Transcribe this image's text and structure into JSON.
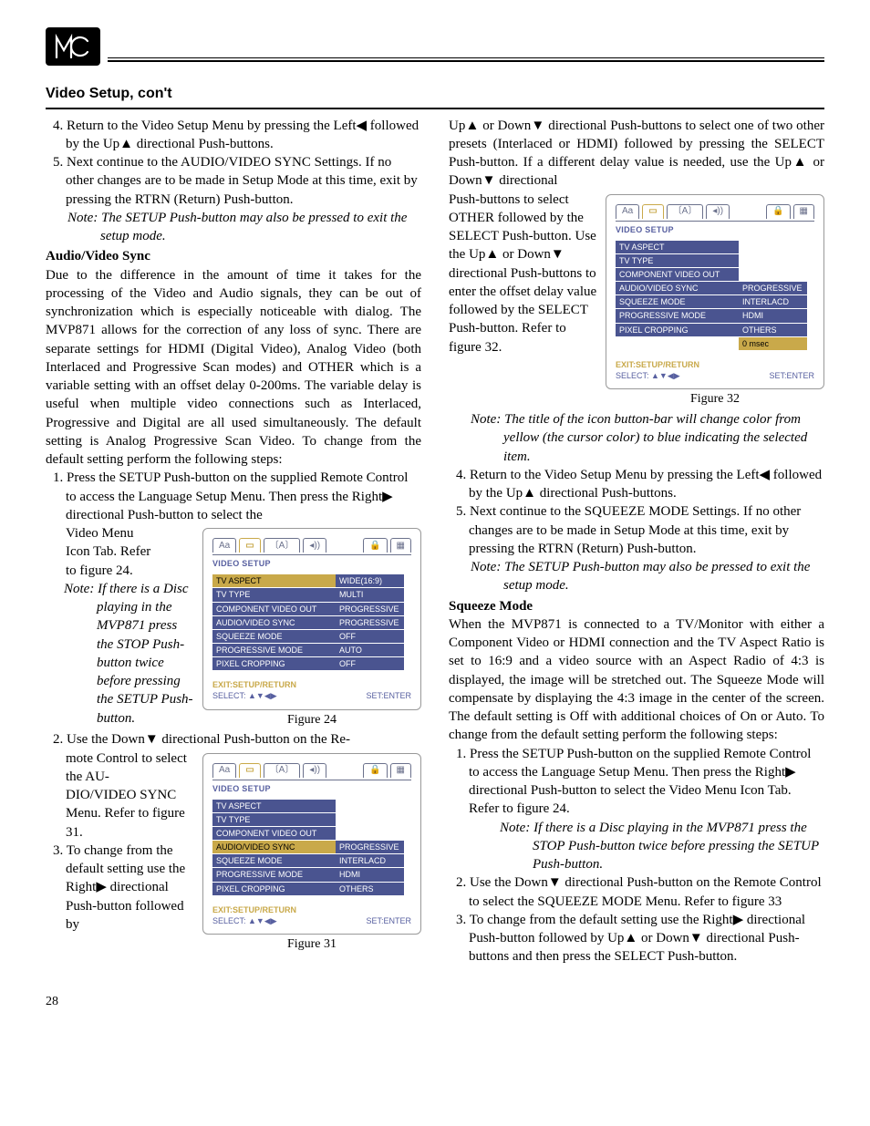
{
  "page": {
    "section_title": "Video Setup, con't",
    "number": "28"
  },
  "logo_text": "MC",
  "left_col": {
    "s4": "4. Return to the Video Setup Menu by pressing the Left◀ followed by the Up▲ directional Push-buttons.",
    "s5": "5. Next continue to the AUDIO/VIDEO SYNC Settings. If no other changes are to be made in Setup Mode at this time, exit by pressing the RTRN (Return) Push-button.",
    "s5_note": "Note: The SETUP Push-button may also be pressed to exit the setup mode.",
    "av_head": "Audio/Video Sync",
    "av_body": "Due to the difference in the amount of time it takes for the processing of the Video and Audio signals, they can be out of synchronization which is especially noticeable with dialog. The MVP871 allows for the correction of any loss of sync. There are separate settings for HDMI (Digital Video), Analog Video (both Interlaced and Progressive Scan modes) and OTHER which is a variable setting with an offset delay 0-200ms. The variable delay is useful when multiple video connections such as Interlaced, Progressive and Digital are all used simultaneously. The default setting is Analog Progressive Scan Video. To change from the default setting perform the following steps:",
    "s1a": "1. Press the SETUP Push-button on the supplied Remote Control to access the Language Setup Menu. Then press the Right▶ directional Push-button to select the Video Menu Icon Tab. Refer to figure 24.",
    "s1a_wrapped_1": "Video Menu",
    "s1a_wrapped_2": "Icon Tab. Refer",
    "s1a_wrapped_3": "to figure 24.",
    "s1a_note": "Note: If there is a Disc playing in the MVP871 press the STOP Push-button twice before pressing the SETUP Push-button.",
    "s2a": "2. Use the Down▼ directional Push-button on the Remote Control to select the AUDIO/VIDEO SYNC Menu. Refer to figure 31.",
    "s2a_wrapped": "mote Control to select the AU-DIO/VIDEO SYNC Menu. Refer to figure 31.",
    "s3a": "3. To change from the default setting use the Right▶ directional Push-button followed by"
  },
  "right_col": {
    "p1": "Up▲ or Down▼ directional Push-buttons to select one of two other presets (Interlaced or HDMI) followed by pressing the SELECT Push-button. If a different delay value is needed, use the Up▲ or Down▼ directional Push-buttons to select OTHER followed by the SELECT Push-button. Use the Up▲ or Down▼ directional Push-buttons to enter the offset delay value followed by the SELECT Push-button. Refer to figure 32.",
    "p1_wrapped": "Push-buttons to select OTHER followed by the SELECT Push-button. Use the Up▲ or Down▼ directional Push-buttons to enter the offset delay value followed by the SELECT Push-button. Refer to figure 32.",
    "p1_note": "Note: The title of the icon button-bar will change color from yellow (the cursor color) to blue indicating the selected item.",
    "s4b": "4. Return to the Video Setup Menu by pressing the Left◀ followed by the Up▲ directional Push-buttons.",
    "s5b": "5. Next continue to the SQUEEZE MODE Settings. If no other changes are to be made in Setup Mode at this time, exit by pressing the RTRN (Return) Push-button.",
    "s5b_note": "Note: The SETUP Push-button may also be pressed to exit the setup mode.",
    "sq_head": "Squeeze Mode",
    "sq_body": "When the MVP871 is connected to a TV/Monitor with either a Component Video or HDMI connection and the TV Aspect Ratio is set to 16:9 and a video source with an Aspect Radio of 4:3 is displayed, the image will be stretched out. The Squeeze Mode will compensate by displaying the 4:3 image in the center of the screen. The default setting is Off with additional choices of On or Auto. To change from the default setting perform the following steps:",
    "s1c": "1. Press the SETUP Push-button on the supplied Remote Control to access the Language Setup Menu. Then press the Right▶ directional Push-button to select the Video Menu Icon Tab. Refer to figure 24.",
    "s1c_note": "Note: If there is a Disc playing in the MVP871 press the STOP Push-button twice before pressing the SETUP Push-button.",
    "s2c": "2. Use the Down▼ directional Push-button on the Remote Control to select the SQUEEZE MODE Menu. Refer to figure 33",
    "s3c": "3. To change from the default setting use the Right▶ directional Push-button followed by Up▲ or Down▼ directional Push-buttons and then press the SELECT Push-button."
  },
  "osd_common": {
    "title": "VIDEO SETUP",
    "exit": "EXIT:SETUP/RETURN",
    "select": "SELECT: ▲▼◀▶",
    "set": "SET:ENTER",
    "tabs": [
      "Aa",
      "⬭",
      "〔A〕",
      "◀))",
      "",
      "🔒",
      "▦"
    ]
  },
  "fig24": {
    "caption": "Figure 24",
    "rows": [
      {
        "l": "TV ASPECT",
        "r": "WIDE(16:9)",
        "lc": "c-yellow",
        "rc": "c-blue"
      },
      {
        "l": "TV TYPE",
        "r": "MULTI",
        "lc": "c-blue",
        "rc": "c-blue"
      },
      {
        "l": "COMPONENT VIDEO OUT",
        "r": "PROGRESSIVE",
        "lc": "c-blue",
        "rc": "c-blue"
      },
      {
        "l": "AUDIO/VIDEO SYNC",
        "r": "PROGRESSIVE",
        "lc": "c-blue",
        "rc": "c-blue"
      },
      {
        "l": "SQUEEZE MODE",
        "r": "OFF",
        "lc": "c-blue",
        "rc": "c-blue"
      },
      {
        "l": "PROGRESSIVE MODE",
        "r": "AUTO",
        "lc": "c-blue",
        "rc": "c-blue"
      },
      {
        "l": "PIXEL CROPPING",
        "r": "OFF",
        "lc": "c-blue",
        "rc": "c-blue"
      }
    ]
  },
  "fig31": {
    "caption": "Figure 31",
    "rows": [
      {
        "l": "TV ASPECT",
        "r": "",
        "lc": "c-blue",
        "rc": "c-dash"
      },
      {
        "l": "TV TYPE",
        "r": "",
        "lc": "c-blue",
        "rc": "c-dash"
      },
      {
        "l": "COMPONENT VIDEO OUT",
        "r": "",
        "lc": "c-blue",
        "rc": "c-dash"
      },
      {
        "l": "AUDIO/VIDEO SYNC",
        "r": "PROGRESSIVE",
        "lc": "c-yellow",
        "rc": "c-blue"
      },
      {
        "l": "SQUEEZE MODE",
        "r": "INTERLACD",
        "lc": "c-blue",
        "rc": "c-blue"
      },
      {
        "l": "PROGRESSIVE MODE",
        "r": "HDMI",
        "lc": "c-blue",
        "rc": "c-blue"
      },
      {
        "l": "PIXEL CROPPING",
        "r": "OTHERS",
        "lc": "c-blue",
        "rc": "c-blue"
      }
    ]
  },
  "fig32": {
    "caption": "Figure 32",
    "rows": [
      {
        "l": "TV ASPECT",
        "r": "",
        "lc": "c-blue",
        "rc": "c-dash"
      },
      {
        "l": "TV TYPE",
        "r": "",
        "lc": "c-blue",
        "rc": "c-dash"
      },
      {
        "l": "COMPONENT VIDEO OUT",
        "r": "",
        "lc": "c-blue",
        "rc": "c-dash"
      },
      {
        "l": "AUDIO/VIDEO SYNC",
        "r": "PROGRESSIVE",
        "lc": "c-blue",
        "rc": "c-blue"
      },
      {
        "l": "SQUEEZE MODE",
        "r": "INTERLACD",
        "lc": "c-blue",
        "rc": "c-blue"
      },
      {
        "l": "PROGRESSIVE MODE",
        "r": "HDMI",
        "lc": "c-blue",
        "rc": "c-blue"
      },
      {
        "l": "PIXEL CROPPING",
        "r": "OTHERS",
        "lc": "c-blue",
        "rc": "c-blue"
      },
      {
        "l": "",
        "r": "0 msec",
        "lc": "c-dash",
        "rc": "c-yellow"
      }
    ]
  }
}
